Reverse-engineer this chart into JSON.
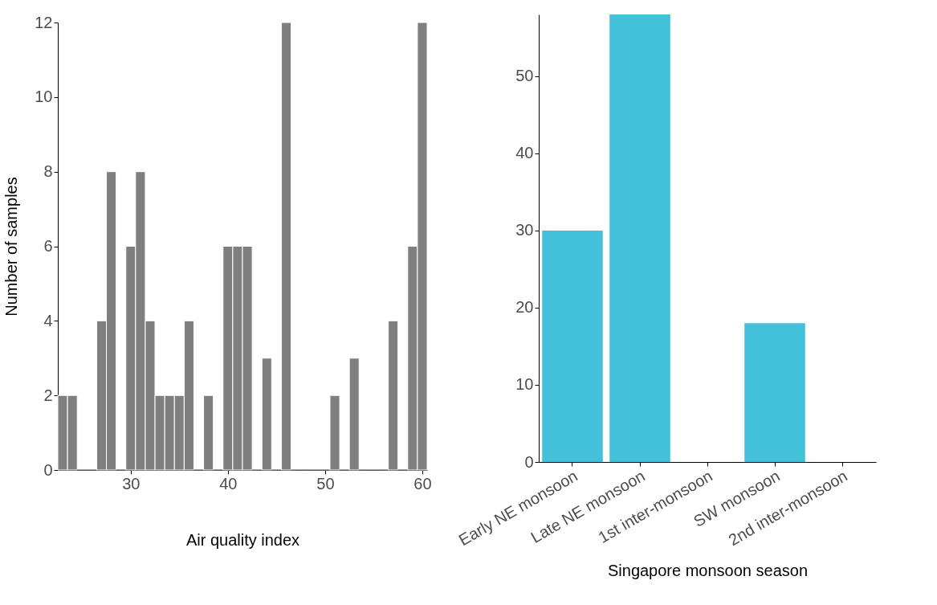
{
  "chart_data": [
    {
      "type": "histogram",
      "xlabel": "Air quality index",
      "ylabel": "Number of samples",
      "bins": [
        22.5,
        23.5,
        24.5,
        25.5,
        26.5,
        27.5,
        28.5,
        29.5,
        30.5,
        31.5,
        32.5,
        33.5,
        34.5,
        35.5,
        36.5,
        37.5,
        38.5,
        39.5,
        40.5,
        41.5,
        42.5,
        43.5,
        44.5,
        45.5,
        46.5,
        47.5,
        48.5,
        49.5,
        50.5,
        51.5,
        52.5,
        53.5,
        54.5,
        55.5,
        56.5,
        57.5,
        58.5,
        59.5,
        60.5
      ],
      "values": [
        2,
        2,
        0,
        0,
        4,
        8,
        0,
        6,
        8,
        4,
        2,
        2,
        2,
        4,
        0,
        2,
        0,
        6,
        6,
        6,
        0,
        3,
        0,
        12,
        0,
        0,
        0,
        0,
        2,
        0,
        3,
        0,
        0,
        0,
        4,
        0,
        6,
        12
      ],
      "color": "#7f7f7f",
      "xlim": [
        22.5,
        60.5
      ],
      "ylim": [
        0,
        12
      ],
      "xticks": [
        30,
        40,
        50,
        60
      ],
      "yticks": [
        0,
        2,
        4,
        6,
        8,
        10,
        12
      ],
      "grid": false
    },
    {
      "type": "bar",
      "xlabel": "Singapore monsoon season",
      "categories": [
        "Early NE monsoon",
        "Late NE monsoon",
        "1st inter-monsoon",
        "SW monsoon",
        "2nd inter-monsoon"
      ],
      "values": [
        30,
        58,
        0,
        18,
        0
      ],
      "color": "#44c1da",
      "ylim": [
        0,
        58
      ],
      "yticks": [
        0,
        10,
        20,
        30,
        40,
        50
      ],
      "grid": false
    }
  ]
}
